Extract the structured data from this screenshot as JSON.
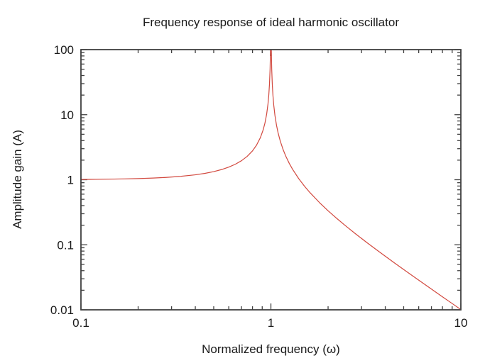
{
  "page": {
    "background": "#ffffff"
  },
  "chart_data": {
    "type": "line",
    "title": "Frequency response of ideal harmonic oscillator",
    "xlabel": "Normalized frequency (ω)",
    "ylabel": "Amplitude gain (A)",
    "xscale": "log",
    "yscale": "log",
    "xlim": [
      0.1,
      10
    ],
    "ylim": [
      0.01,
      100
    ],
    "grid": false,
    "legend_visible": false,
    "axis_color": "#404040",
    "text_color": "#1a1a1a",
    "x_ticks": [
      {
        "v": 0.1,
        "label": "0.1"
      },
      {
        "v": 1,
        "label": "1"
      },
      {
        "v": 10,
        "label": "10"
      }
    ],
    "y_ticks": [
      {
        "v": 0.01,
        "label": "0.01"
      },
      {
        "v": 0.1,
        "label": "0.1"
      },
      {
        "v": 1,
        "label": "1"
      },
      {
        "v": 10,
        "label": "10"
      },
      {
        "v": 100,
        "label": "100"
      }
    ],
    "minor_log_ticks": true,
    "series": [
      {
        "color": "#d2493f",
        "points": [
          [
            0.1,
            1.0101
          ],
          [
            0.12,
            1.0146
          ],
          [
            0.14,
            1.02
          ],
          [
            0.17,
            1.0298
          ],
          [
            0.2,
            1.0417
          ],
          [
            0.24,
            1.0611
          ],
          [
            0.28,
            1.0851
          ],
          [
            0.33,
            1.1222
          ],
          [
            0.4,
            1.1905
          ],
          [
            0.45,
            1.2539
          ],
          [
            0.5,
            1.3333
          ],
          [
            0.55,
            1.4337
          ],
          [
            0.6,
            1.5625
          ],
          [
            0.65,
            1.7316
          ],
          [
            0.7,
            1.9608
          ],
          [
            0.75,
            2.2857
          ],
          [
            0.8,
            2.7778
          ],
          [
            0.84,
            3.3967
          ],
          [
            0.88,
            4.4326
          ],
          [
            0.91,
            5.8173
          ],
          [
            0.93,
            7.4019
          ],
          [
            0.95,
            10.256
          ],
          [
            0.965,
            14.54
          ],
          [
            0.975,
            20.25
          ],
          [
            0.983,
            29.66
          ],
          [
            0.99,
            50.25
          ],
          [
            0.995,
            100.3
          ],
          [
            0.9975,
            200.1
          ],
          [
            0.999,
            500.3
          ],
          [
            0.9995,
            1000.3
          ],
          [
            1.0005,
            999.8
          ],
          [
            1.001,
            499.8
          ],
          [
            1.0025,
            199.8
          ],
          [
            1.005,
            99.75
          ],
          [
            1.01,
            49.75
          ],
          [
            1.017,
            29.16
          ],
          [
            1.025,
            19.75
          ],
          [
            1.035,
            14.04
          ],
          [
            1.05,
            9.756
          ],
          [
            1.07,
            6.901
          ],
          [
            1.09,
            5.316
          ],
          [
            1.12,
            3.931
          ],
          [
            1.16,
            2.894
          ],
          [
            1.2,
            2.2727
          ],
          [
            1.25,
            1.7778
          ],
          [
            1.3,
            1.4493
          ],
          [
            1.4,
            1.0417
          ],
          [
            1.5,
            0.8
          ],
          [
            1.6,
            0.641
          ],
          [
            1.8,
            0.4464
          ],
          [
            2.0,
            0.3333
          ],
          [
            2.2,
            0.2604
          ],
          [
            2.5,
            0.1905
          ],
          [
            2.8,
            0.1462
          ],
          [
            3.2,
            0.1082
          ],
          [
            3.6,
            0.0836
          ],
          [
            4.0,
            0.0667
          ],
          [
            4.5,
            0.05195
          ],
          [
            5.0,
            0.04167
          ],
          [
            5.6,
            0.03294
          ],
          [
            6.3,
            0.02585
          ],
          [
            7.1,
            0.02024
          ],
          [
            7.9,
            0.01628
          ],
          [
            8.9,
            0.01279
          ],
          [
            10.0,
            0.0101
          ]
        ]
      }
    ]
  }
}
